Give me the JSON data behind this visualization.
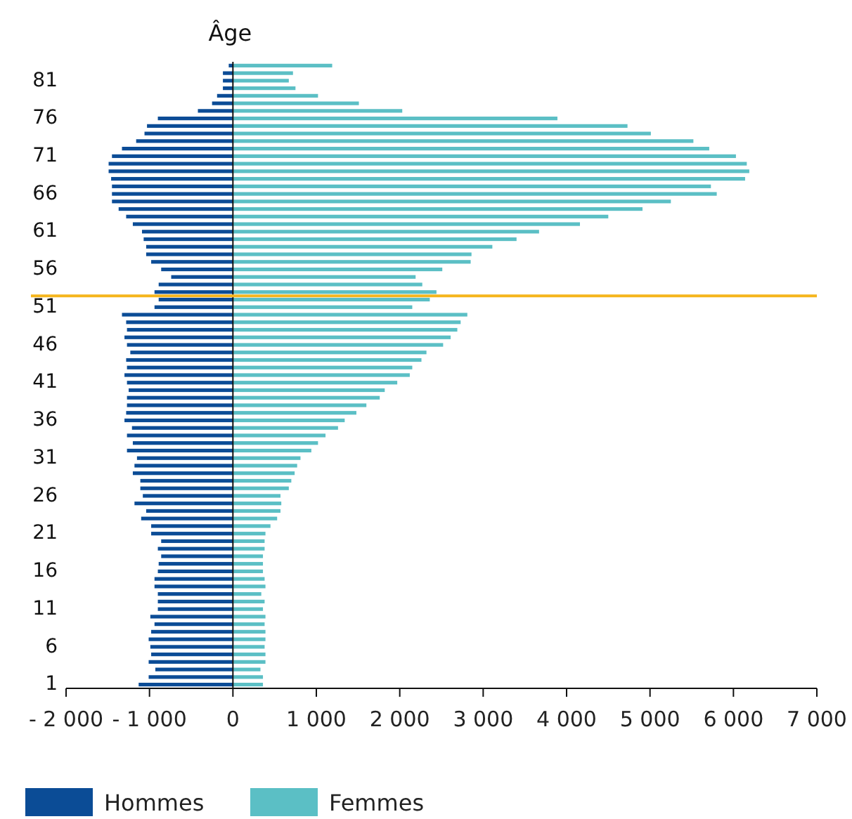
{
  "chart_data": {
    "type": "bar",
    "orientation": "horizontal",
    "ylabel": "Âge",
    "x": [
      83,
      82,
      81,
      80,
      79,
      78,
      77,
      76,
      75,
      74,
      73,
      72,
      71,
      70,
      69,
      68,
      67,
      66,
      65,
      64,
      63,
      62,
      61,
      60,
      59,
      58,
      57,
      56,
      55,
      54,
      53,
      52,
      51,
      50,
      49,
      48,
      47,
      46,
      45,
      44,
      43,
      42,
      41,
      40,
      39,
      38,
      37,
      36,
      35,
      34,
      33,
      32,
      31,
      30,
      29,
      28,
      27,
      26,
      25,
      24,
      23,
      22,
      21,
      20,
      19,
      18,
      17,
      16,
      15,
      14,
      13,
      12,
      11,
      10,
      9,
      8,
      7,
      6,
      5,
      4,
      3,
      2,
      1
    ],
    "ylim": [
      0.5,
      83.5
    ],
    "yticks": [
      1,
      6,
      11,
      16,
      21,
      26,
      31,
      36,
      41,
      46,
      51,
      56,
      61,
      66,
      71,
      76,
      81
    ],
    "series": [
      {
        "name": "Hommes",
        "color": "#0b4c96",
        "values": [
          -50,
          -120,
          -120,
          -120,
          -190,
          -250,
          -420,
          -900,
          -1030,
          -1060,
          -1160,
          -1330,
          -1450,
          -1490,
          -1490,
          -1460,
          -1450,
          -1450,
          -1450,
          -1370,
          -1280,
          -1200,
          -1090,
          -1070,
          -1040,
          -1040,
          -980,
          -860,
          -740,
          -890,
          -940,
          -890,
          -940,
          -1330,
          -1280,
          -1270,
          -1300,
          -1270,
          -1230,
          -1280,
          -1270,
          -1300,
          -1270,
          -1250,
          -1270,
          -1270,
          -1280,
          -1300,
          -1210,
          -1270,
          -1200,
          -1270,
          -1150,
          -1180,
          -1200,
          -1110,
          -1110,
          -1080,
          -1180,
          -1040,
          -1100,
          -980,
          -980,
          -860,
          -900,
          -860,
          -890,
          -900,
          -940,
          -940,
          -900,
          -900,
          -900,
          -990,
          -940,
          -980,
          -1010,
          -990,
          -980,
          -1010,
          -930,
          -1010,
          -1130
        ]
      },
      {
        "name": "Femmes",
        "color": "#5bbfc5",
        "values": [
          1190,
          720,
          670,
          750,
          1020,
          1510,
          2030,
          3890,
          4730,
          5010,
          5520,
          5710,
          6030,
          6160,
          6190,
          6140,
          5730,
          5800,
          5250,
          4910,
          4500,
          4160,
          3670,
          3400,
          3110,
          2860,
          2850,
          2510,
          2190,
          2270,
          2440,
          2360,
          2150,
          2810,
          2730,
          2690,
          2610,
          2520,
          2320,
          2260,
          2150,
          2120,
          1970,
          1820,
          1760,
          1600,
          1480,
          1340,
          1260,
          1110,
          1020,
          940,
          810,
          770,
          740,
          700,
          670,
          570,
          580,
          570,
          530,
          450,
          390,
          380,
          380,
          360,
          360,
          360,
          380,
          390,
          340,
          380,
          360,
          390,
          380,
          390,
          390,
          380,
          390,
          390,
          330,
          360,
          360
        ]
      }
    ],
    "xlim": [
      -2000,
      7000
    ],
    "xticks": [
      {
        "value": -2000,
        "label": "- 2 000"
      },
      {
        "value": -1000,
        "label": "- 1 000"
      },
      0,
      {
        "value": 1000,
        "label": "1 000"
      },
      {
        "value": 2000,
        "label": "2 000"
      },
      {
        "value": 3000,
        "label": "3 000"
      },
      {
        "value": 4000,
        "label": "4 000"
      },
      {
        "value": 5000,
        "label": "5 000"
      },
      {
        "value": 6000,
        "label": "6 000"
      },
      {
        "value": 7000,
        "label": "7 000"
      }
    ],
    "ref_lines": [
      {
        "axis": "y",
        "value": 52.5,
        "color": "#f5b51c"
      }
    ],
    "stacked": true,
    "legend": "bottom"
  }
}
